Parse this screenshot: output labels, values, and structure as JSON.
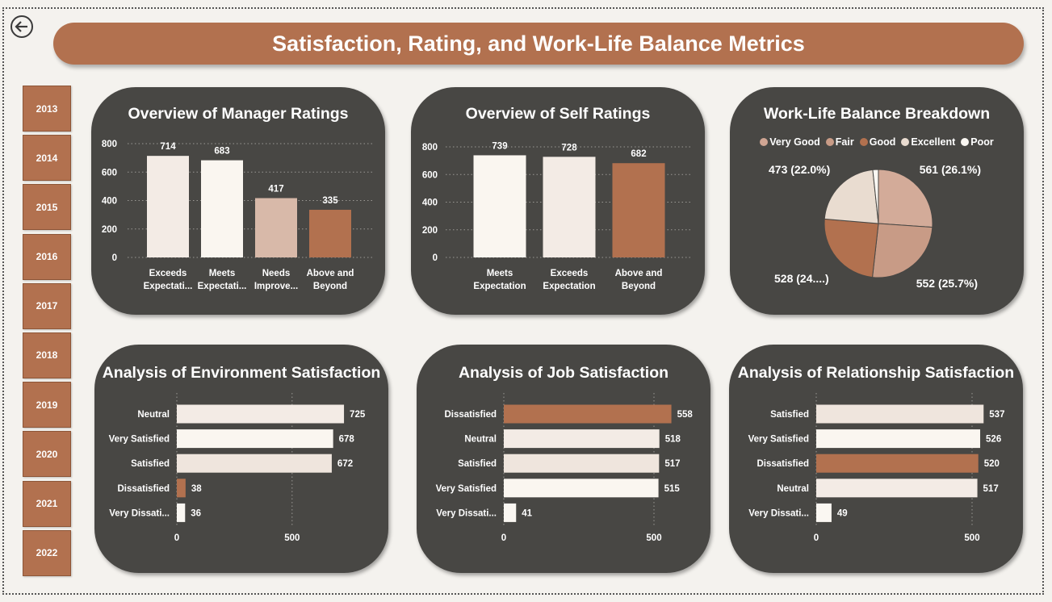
{
  "page": {
    "title": "Satisfaction, Rating, and Work-Life Balance Metrics",
    "back_icon": "back-arrow-icon",
    "accent_color": "#b2714f",
    "card_color": "#484744"
  },
  "year_slicer": [
    "2013",
    "2014",
    "2015",
    "2016",
    "2017",
    "2018",
    "2019",
    "2020",
    "2021",
    "2022"
  ],
  "chart_data": [
    {
      "id": "manager_ratings",
      "type": "bar",
      "title": "Overview of Manager Ratings",
      "categories": [
        "Exceeds Expectati...",
        "Meets Expectati...",
        "Needs Improve...",
        "Above and Beyond"
      ],
      "values": [
        714,
        683,
        417,
        335
      ],
      "colors": [
        "#f3ebe5",
        "#faf6f0",
        "#d8b9a9",
        "#b2714f"
      ],
      "yticks": [
        0,
        200,
        400,
        600,
        800
      ],
      "ylim": [
        0,
        800
      ],
      "grid": true
    },
    {
      "id": "self_ratings",
      "type": "bar",
      "title": "Overview of Self Ratings",
      "categories": [
        "Meets Expectation",
        "Exceeds Expectation",
        "Above and Beyond"
      ],
      "values": [
        739,
        728,
        682
      ],
      "colors": [
        "#faf6f0",
        "#f3ebe5",
        "#b2714f"
      ],
      "yticks": [
        0,
        200,
        400,
        600,
        800
      ],
      "ylim": [
        0,
        800
      ],
      "grid": true
    },
    {
      "id": "work_life_balance",
      "type": "pie",
      "title": "Work-Life Balance Breakdown",
      "legend": [
        "Very Good",
        "Fair",
        "Good",
        "Excellent",
        "Poor"
      ],
      "legend_colors": [
        "#d0a593",
        "#c89b86",
        "#b2714f",
        "#e9dcd0",
        "#faf7f2"
      ],
      "legend_position": "top",
      "slices": [
        {
          "value": 561,
          "label": "561 (26.1%)",
          "color": "#d3ab99"
        },
        {
          "value": 552,
          "label": "552 (25.7%)",
          "color": "#c89b86"
        },
        {
          "value": 528,
          "label": "528 (24....)",
          "color": "#b2714f"
        },
        {
          "value": 473,
          "label": "473 (22.0%)",
          "color": "#e9dcd0"
        },
        {
          "value": 36,
          "label": "",
          "color": "#faf7f2"
        }
      ]
    },
    {
      "id": "environment_satisfaction",
      "type": "bar",
      "orientation": "horizontal",
      "title": "Analysis of Environment Satisfaction",
      "categories": [
        "Neutral",
        "Very Satisfied",
        "Satisfied",
        "Dissatisfied",
        "Very Dissati..."
      ],
      "values": [
        725,
        678,
        672,
        38,
        36
      ],
      "colors": [
        "#f3ebe5",
        "#faf6f0",
        "#efe5dd",
        "#b2714f",
        "#faf7f2"
      ],
      "xticks": [
        0,
        500
      ],
      "xlim": [
        0,
        760
      ]
    },
    {
      "id": "job_satisfaction",
      "type": "bar",
      "orientation": "horizontal",
      "title": "Analysis of Job Satisfaction",
      "categories": [
        "Dissatisfied",
        "Neutral",
        "Satisfied",
        "Very Satisfied",
        "Very Dissati..."
      ],
      "values": [
        558,
        518,
        517,
        515,
        41
      ],
      "colors": [
        "#b2714f",
        "#f3ebe5",
        "#efe5dd",
        "#faf6f0",
        "#faf7f2"
      ],
      "xticks": [
        0,
        500
      ],
      "xlim": [
        0,
        585
      ]
    },
    {
      "id": "relationship_satisfaction",
      "type": "bar",
      "orientation": "horizontal",
      "title": "Analysis of Relationship Satisfaction",
      "categories": [
        "Satisfied",
        "Very Satisfied",
        "Dissatisfied",
        "Neutral",
        "Very Dissati..."
      ],
      "values": [
        537,
        526,
        520,
        517,
        49
      ],
      "colors": [
        "#efe5dd",
        "#faf6f0",
        "#b2714f",
        "#f3ebe5",
        "#faf7f2"
      ],
      "xticks": [
        0,
        500
      ],
      "xlim": [
        0,
        560
      ]
    }
  ]
}
